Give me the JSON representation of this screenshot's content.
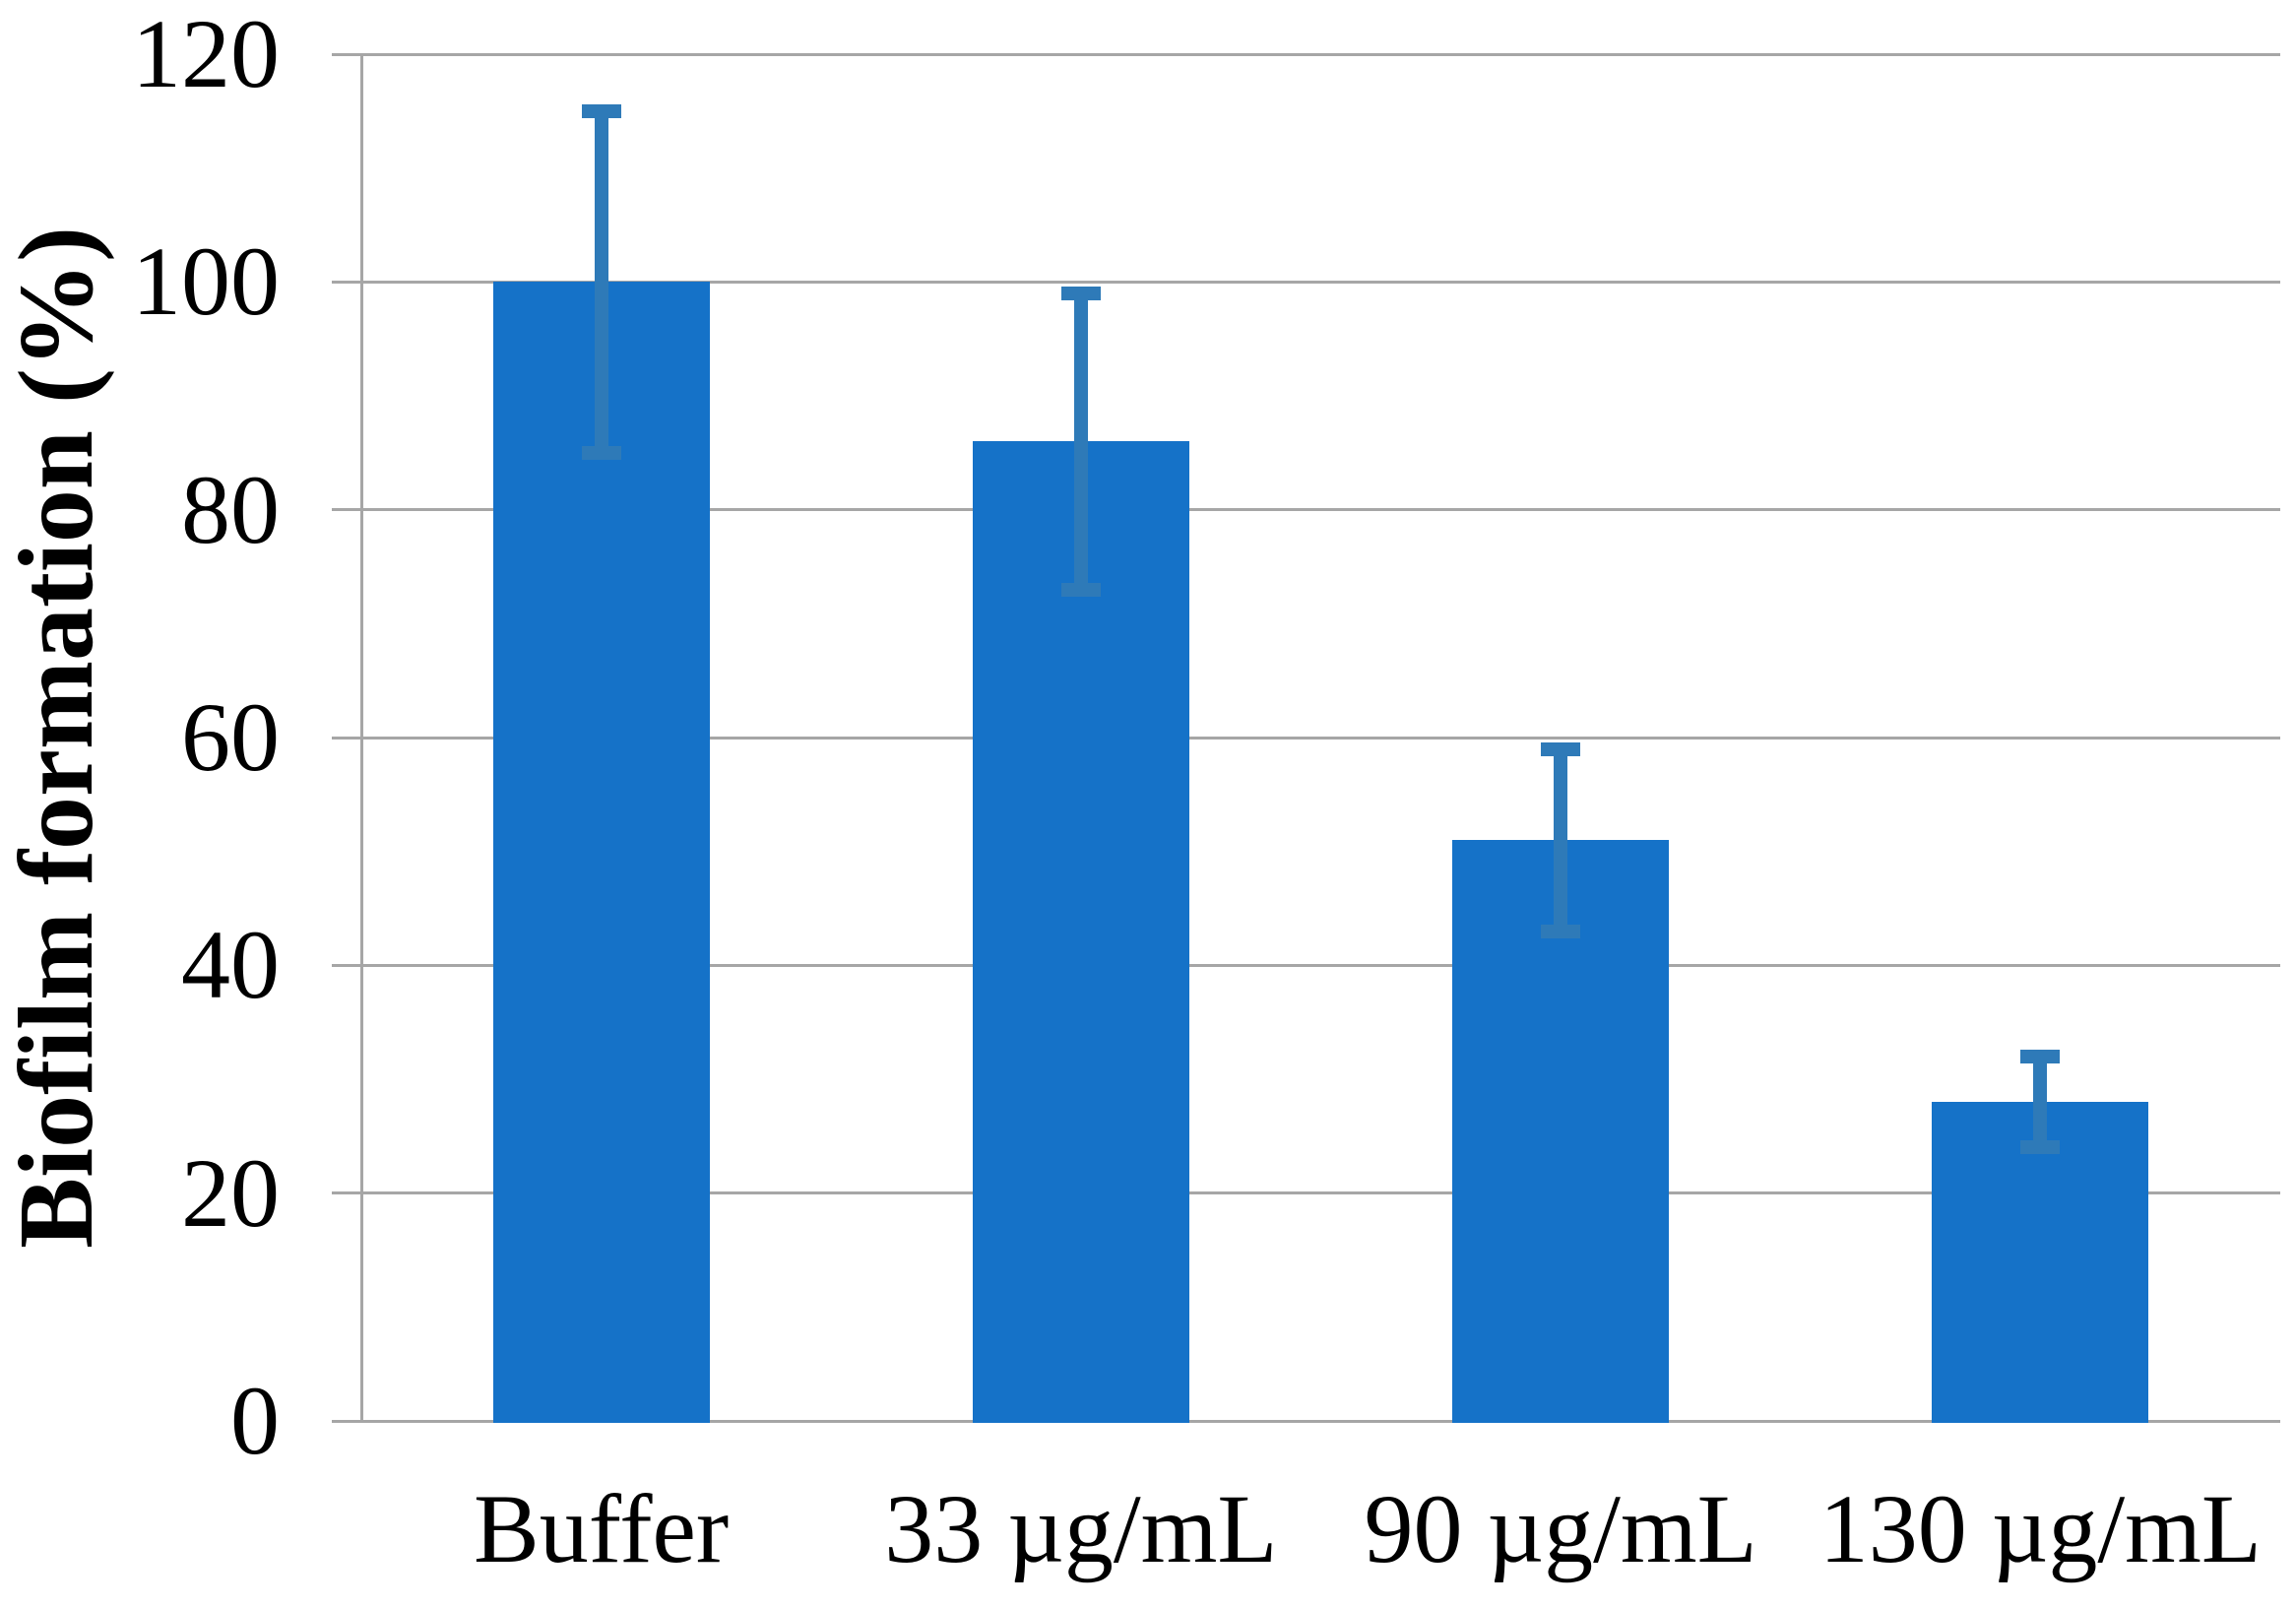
{
  "chart_data": {
    "type": "bar",
    "title": "",
    "ylabel": "Biofilm formation (%)",
    "xlabel": "",
    "categories": [
      "Buffer",
      "33 µg/mL",
      "90 µg/mL",
      "130 µg/mL"
    ],
    "values": [
      100,
      86,
      51,
      28
    ],
    "error_bars": [
      15,
      13,
      8,
      4
    ],
    "ylim": [
      0,
      120
    ],
    "yticks": [
      0,
      20,
      40,
      60,
      80,
      100,
      120
    ],
    "ytick_labels": [
      "0",
      "20",
      "40",
      "60",
      "80",
      "100",
      "120"
    ],
    "grid": true,
    "legend": "none",
    "colors": {
      "bar": "#1572c8",
      "error_bar": "#2e7ab8",
      "axis": "#a6a6a6",
      "text": "#000000"
    }
  }
}
